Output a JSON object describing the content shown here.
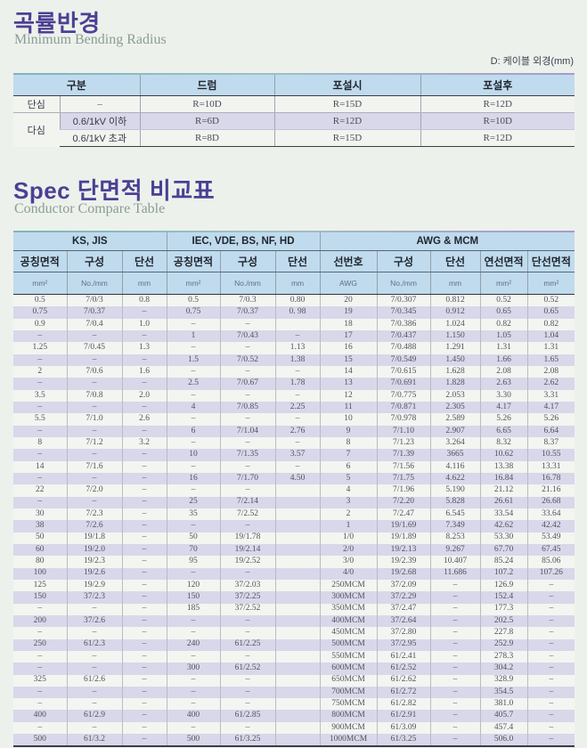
{
  "colors": {
    "title_purple": "#4b4094",
    "subtitle_gray": "#8b9c95",
    "header_blue": "#c0dbee",
    "stripe_lavender": "#d9d7ea",
    "row_white": "#f3f5f0",
    "page_bg": "#edf1ec"
  },
  "section1": {
    "title": "곡률반경",
    "subtitle": "Minimum Bending Radius",
    "note": "D: 케이블 외경(mm)",
    "table": {
      "headers": {
        "category": "구분",
        "drum": "드럼",
        "laying": "포설시",
        "after": "포설후"
      },
      "rows": [
        {
          "type": "단심",
          "sub": "–",
          "drum": "R=10D",
          "laying": "R=15D",
          "after": "R=12D"
        },
        {
          "type": "다심",
          "sub": "0.6/1kV 이하",
          "drum": "R=6D",
          "laying": "R=12D",
          "after": "R=10D"
        },
        {
          "sub": "0.6/1kV 초과",
          "drum": "R=8D",
          "laying": "R=15D",
          "after": "R=12D"
        }
      ]
    }
  },
  "section2": {
    "title": "Spec 단면적 비교표",
    "subtitle": "Conductor Compare Table",
    "table": {
      "groups": [
        "KS, JIS",
        "IEC, VDE, BS, NF, HD",
        "AWG & MCM"
      ],
      "columns": [
        "공칭면적",
        "구성",
        "단선",
        "공칭면적",
        "구성",
        "단선",
        "선번호",
        "구성",
        "단선",
        "연선면적",
        "단선면적"
      ],
      "units": [
        "mm²",
        "No./mm",
        "mm",
        "mm²",
        "No./mm",
        "mm",
        "AWG",
        "No./mm",
        "mm",
        "mm²",
        "mm²"
      ],
      "rows": [
        [
          "0.5",
          "7/0/3",
          "0.8",
          "0.5",
          "7/0.3",
          "0.80",
          "20",
          "7/0.307",
          "0.812",
          "0.52",
          "0.52"
        ],
        [
          "0.75",
          "7/0.37",
          "–",
          "0.75",
          "7/0.37",
          "0. 98",
          "19",
          "7/0.345",
          "0.912",
          "0.65",
          "0.65"
        ],
        [
          "0.9",
          "7/0.4",
          "1.0",
          "–",
          "–",
          "",
          "18",
          "7/0.386",
          "1.024",
          "0.82",
          "0.82"
        ],
        [
          "–",
          "–",
          "–",
          "1",
          "7/0.43",
          "–",
          "17",
          "7/0.437",
          "1.150",
          "1.05",
          "1.04"
        ],
        [
          "1.25",
          "7/0.45",
          "1.3",
          "–",
          "–",
          "1.13",
          "16",
          "7/0.488",
          "1.291",
          "1.31",
          "1.31"
        ],
        [
          "–",
          "–",
          "–",
          "1.5",
          "7/0.52",
          "1.38",
          "15",
          "7/0.549",
          "1.450",
          "1.66",
          "1.65"
        ],
        [
          "2",
          "7/0.6",
          "1.6",
          "–",
          "–",
          "–",
          "14",
          "7/0.615",
          "1.628",
          "2.08",
          "2.08"
        ],
        [
          "–",
          "–",
          "–",
          "2.5",
          "7/0.67",
          "1.78",
          "13",
          "7/0.691",
          "1.828",
          "2.63",
          "2.62"
        ],
        [
          "3.5",
          "7/0.8",
          "2.0",
          "–",
          "–",
          "–",
          "12",
          "7/0.775",
          "2.053",
          "3.30",
          "3.31"
        ],
        [
          "–",
          "–",
          "–",
          "4",
          "7/0.85",
          "2.25",
          "11",
          "7/0.871",
          "2.305",
          "4.17",
          "4.17"
        ],
        [
          "5.5",
          "7/1.0",
          "2.6",
          "–",
          "–",
          "–",
          "10",
          "7/0.978",
          "2.589",
          "5.26",
          "5.26"
        ],
        [
          "–",
          "–",
          "–",
          "6",
          "7/1.04",
          "2.76",
          "9",
          "7/1.10",
          "2.907",
          "6.65",
          "6.64"
        ],
        [
          "8",
          "7/1.2",
          "3.2",
          "–",
          "–",
          "–",
          "8",
          "7/1.23",
          "3.264",
          "8.32",
          "8.37"
        ],
        [
          "–",
          "–",
          "–",
          "10",
          "7/1.35",
          "3.57",
          "7",
          "7/1.39",
          "3665",
          "10.62",
          "10.55"
        ],
        [
          "14",
          "7/1.6",
          "–",
          "–",
          "–",
          "–",
          "6",
          "7/1.56",
          "4.116",
          "13.38",
          "13.31"
        ],
        [
          "–",
          "–",
          "–",
          "16",
          "7/1.70",
          "4.50",
          "5",
          "7/1.75",
          "4.622",
          "16.84",
          "16.78"
        ],
        [
          "22",
          "7/2.0",
          "–",
          "–",
          "–",
          "",
          "4",
          "7/1.96",
          "5.190",
          "21.12",
          "21.16"
        ],
        [
          "–",
          "–",
          "–",
          "25",
          "7/2.14",
          "",
          "3",
          "7/2.20",
          "5.828",
          "26.61",
          "26.68"
        ],
        [
          "30",
          "7/2.3",
          "–",
          "35",
          "7/2.52",
          "",
          "2",
          "7/2.47",
          "6.545",
          "33.54",
          "33.64"
        ],
        [
          "38",
          "7/2.6",
          "–",
          "–",
          "–",
          "",
          "1",
          "19/1.69",
          "7.349",
          "42.62",
          "42.42"
        ],
        [
          "50",
          "19/1.8",
          "–",
          "50",
          "19/1.78",
          "",
          "1/0",
          "19/1.89",
          "8.253",
          "53.30",
          "53.49"
        ],
        [
          "60",
          "19/2.0",
          "–",
          "70",
          "19/2.14",
          "",
          "2/0",
          "19/2.13",
          "9.267",
          "67.70",
          "67.45"
        ],
        [
          "80",
          "19/2.3",
          "–",
          "95",
          "19/2.52",
          "",
          "3/0",
          "19/2.39",
          "10.407",
          "85.24",
          "85.06"
        ],
        [
          "100",
          "19/2.6",
          "–",
          "–",
          "–",
          "",
          "4/0",
          "19/2.68",
          "11.686",
          "107.2",
          "107.26"
        ],
        [
          "125",
          "19/2.9",
          "–",
          "120",
          "37/2.03",
          "",
          "250MCM",
          "37/2.09",
          "–",
          "126.9",
          "–"
        ],
        [
          "150",
          "37/2.3",
          "–",
          "150",
          "37/2.25",
          "",
          "300MCM",
          "37/2.29",
          "–",
          "152.4",
          "–"
        ],
        [
          "–",
          "–",
          "–",
          "185",
          "37/2.52",
          "",
          "350MCM",
          "37/2.47",
          "–",
          "177.3",
          "–"
        ],
        [
          "200",
          "37/2.6",
          "–",
          "–",
          "–",
          "",
          "400MCM",
          "37/2.64",
          "–",
          "202.5",
          "–"
        ],
        [
          "–",
          "–",
          "–",
          "–",
          "–",
          "",
          "450MCM",
          "37/2.80",
          "–",
          "227.8",
          "–"
        ],
        [
          "250",
          "61/2.3",
          "–",
          "240",
          "61/2.25",
          "",
          "500MCM",
          "37/2.95",
          "–",
          "252.9",
          "–"
        ],
        [
          "–",
          "–",
          "–",
          "–",
          "–",
          "",
          "550MCM",
          "61/2.41",
          "–",
          "278.3",
          "–"
        ],
        [
          "–",
          "–",
          "–",
          "300",
          "61/2.52",
          "",
          "600MCM",
          "61/2.52",
          "–",
          "304.2",
          "–"
        ],
        [
          "325",
          "61/2.6",
          "–",
          "–",
          "–",
          "",
          "650MCM",
          "61/2.62",
          "–",
          "328.9",
          "–"
        ],
        [
          "–",
          "–",
          "–",
          "–",
          "–",
          "",
          "700MCM",
          "61/2.72",
          "–",
          "354.5",
          "–"
        ],
        [
          "–",
          "–",
          "–",
          "–",
          "–",
          "",
          "750MCM",
          "61/2.82",
          "–",
          "381.0",
          "–"
        ],
        [
          "400",
          "61/2.9",
          "–",
          "400",
          "61/2.85",
          "",
          "800MCM",
          "61/2.91",
          "–",
          "405.7",
          "–"
        ],
        [
          "–",
          "–",
          "–",
          "–",
          "–",
          "",
          "900MCM",
          "61/3.09",
          "–",
          "457.4",
          "–"
        ],
        [
          "500",
          "61/3.2",
          "–",
          "500",
          "61/3.25",
          "",
          "1000MCM",
          "61/3.25",
          "–",
          "506.0",
          "–"
        ]
      ]
    }
  }
}
